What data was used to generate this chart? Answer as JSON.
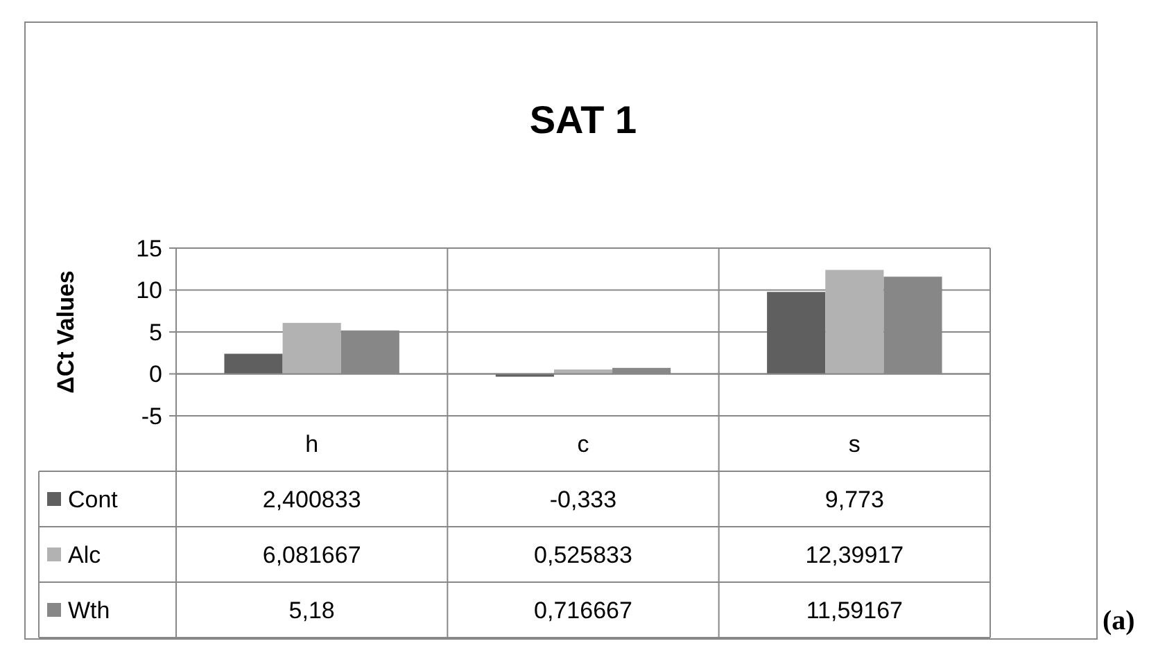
{
  "chart_data": {
    "type": "bar",
    "title": "SAT 1",
    "ylabel": "ΔCt Values",
    "categories": [
      "h",
      "c",
      "s"
    ],
    "series": [
      {
        "name": "Cont",
        "color": "#5f5f5f",
        "values": [
          2.400833,
          -0.333,
          9.773
        ],
        "value_labels": [
          "2,400833",
          "-0,333",
          "9,773"
        ]
      },
      {
        "name": "Alc",
        "color": "#b2b2b2",
        "values": [
          6.081667,
          0.525833,
          12.39917
        ],
        "value_labels": [
          "6,081667",
          "0,525833",
          "12,39917"
        ]
      },
      {
        "name": "Wth",
        "color": "#878787",
        "values": [
          5.18,
          0.716667,
          11.59167
        ],
        "value_labels": [
          "5,18",
          "0,716667",
          "11,59167"
        ]
      }
    ],
    "ylim": [
      -5,
      15
    ],
    "yticks": [
      -5,
      0,
      5,
      10,
      15
    ],
    "grid": "y",
    "legend": "bottom",
    "annotations": [
      "(a)"
    ]
  }
}
